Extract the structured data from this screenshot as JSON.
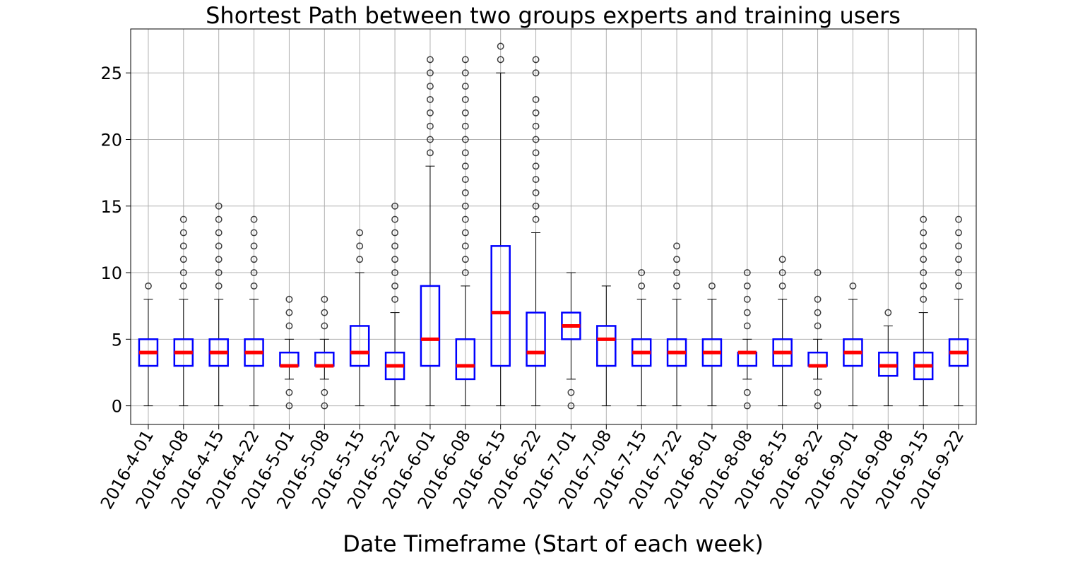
{
  "chart_data": {
    "type": "box",
    "title": "Shortest Path between two groups experts and training users",
    "xlabel": "Date Timeframe (Start of each week)",
    "ylabel": "",
    "ylim": [
      -1.4,
      28.3
    ],
    "yticks": [
      0,
      5,
      10,
      15,
      20,
      25
    ],
    "grid": true,
    "colors": {
      "box": "#0000ff",
      "median": "#ff0000",
      "whisker": "#000000",
      "grid": "#b0b0b0",
      "outlier": "#000000"
    },
    "categories": [
      "2016-4-01",
      "2016-4-08",
      "2016-4-15",
      "2016-4-22",
      "2016-5-01",
      "2016-5-08",
      "2016-5-15",
      "2016-5-22",
      "2016-6-01",
      "2016-6-08",
      "2016-6-15",
      "2016-6-22",
      "2016-7-01",
      "2016-7-08",
      "2016-7-15",
      "2016-7-22",
      "2016-8-01",
      "2016-8-08",
      "2016-8-15",
      "2016-8-22",
      "2016-9-01",
      "2016-9-08",
      "2016-9-15",
      "2016-9-22"
    ],
    "boxes": [
      {
        "category": "2016-4-01",
        "whislo": 0,
        "q1": 3,
        "med": 4,
        "q3": 5,
        "whishi": 8,
        "fliers": [
          9
        ]
      },
      {
        "category": "2016-4-08",
        "whislo": 0,
        "q1": 3,
        "med": 4,
        "q3": 5,
        "whishi": 8,
        "fliers": [
          9,
          10,
          11,
          12,
          13,
          14
        ]
      },
      {
        "category": "2016-4-15",
        "whislo": 0,
        "q1": 3,
        "med": 4,
        "q3": 5,
        "whishi": 8,
        "fliers": [
          9,
          10,
          11,
          12,
          13,
          14,
          15
        ]
      },
      {
        "category": "2016-4-22",
        "whislo": 0,
        "q1": 3,
        "med": 4,
        "q3": 5,
        "whishi": 8,
        "fliers": [
          9,
          10,
          11,
          12,
          13,
          14
        ]
      },
      {
        "category": "2016-5-01",
        "whislo": 2,
        "q1": 3,
        "med": 3,
        "q3": 4,
        "whishi": 5,
        "fliers": [
          0,
          1,
          6,
          7,
          8
        ]
      },
      {
        "category": "2016-5-08",
        "whislo": 2,
        "q1": 3,
        "med": 3,
        "q3": 4,
        "whishi": 5,
        "fliers": [
          0,
          1,
          6,
          7,
          8
        ]
      },
      {
        "category": "2016-5-15",
        "whislo": 0,
        "q1": 3,
        "med": 4,
        "q3": 6,
        "whishi": 10,
        "fliers": [
          11,
          12,
          13
        ]
      },
      {
        "category": "2016-5-22",
        "whislo": 0,
        "q1": 2,
        "med": 3,
        "q3": 4,
        "whishi": 7,
        "fliers": [
          8,
          9,
          10,
          11,
          12,
          13,
          14,
          15
        ]
      },
      {
        "category": "2016-6-01",
        "whislo": 0,
        "q1": 3,
        "med": 5,
        "q3": 9,
        "whishi": 18,
        "fliers": [
          19,
          20,
          21,
          22,
          23,
          24,
          25,
          26
        ]
      },
      {
        "category": "2016-6-08",
        "whislo": 0,
        "q1": 2,
        "med": 3,
        "q3": 5,
        "whishi": 9,
        "fliers": [
          10,
          11,
          12,
          13,
          14,
          15,
          16,
          17,
          18,
          19,
          20,
          21,
          22,
          23,
          24,
          25,
          26
        ]
      },
      {
        "category": "2016-6-15",
        "whislo": 0,
        "q1": 3,
        "med": 7,
        "q3": 12,
        "whishi": 25,
        "fliers": [
          26,
          27
        ]
      },
      {
        "category": "2016-6-22",
        "whislo": 0,
        "q1": 3,
        "med": 4,
        "q3": 7,
        "whishi": 13,
        "fliers": [
          14,
          15,
          16,
          17,
          18,
          19,
          20,
          21,
          22,
          23,
          25,
          26
        ]
      },
      {
        "category": "2016-7-01",
        "whislo": 2,
        "q1": 5,
        "med": 6,
        "q3": 7,
        "whishi": 10,
        "fliers": [
          0,
          1
        ]
      },
      {
        "category": "2016-7-08",
        "whislo": 0,
        "q1": 3,
        "med": 5,
        "q3": 6,
        "whishi": 9,
        "fliers": []
      },
      {
        "category": "2016-7-15",
        "whislo": 0,
        "q1": 3,
        "med": 4,
        "q3": 5,
        "whishi": 8,
        "fliers": [
          9,
          10
        ]
      },
      {
        "category": "2016-7-22",
        "whislo": 0,
        "q1": 3,
        "med": 4,
        "q3": 5,
        "whishi": 8,
        "fliers": [
          9,
          10,
          11,
          12
        ]
      },
      {
        "category": "2016-8-01",
        "whislo": 0,
        "q1": 3,
        "med": 4,
        "q3": 5,
        "whishi": 8,
        "fliers": [
          9
        ]
      },
      {
        "category": "2016-8-08",
        "whislo": 2,
        "q1": 3,
        "med": 4,
        "q3": 4,
        "whishi": 5,
        "fliers": [
          0,
          1,
          6,
          7,
          8,
          9,
          10
        ]
      },
      {
        "category": "2016-8-15",
        "whislo": 0,
        "q1": 3,
        "med": 4,
        "q3": 5,
        "whishi": 8,
        "fliers": [
          9,
          10,
          11
        ]
      },
      {
        "category": "2016-8-22",
        "whislo": 2,
        "q1": 3,
        "med": 3,
        "q3": 4,
        "whishi": 5,
        "fliers": [
          0,
          1,
          6,
          7,
          8,
          10
        ]
      },
      {
        "category": "2016-9-01",
        "whislo": 0,
        "q1": 3,
        "med": 4,
        "q3": 5,
        "whishi": 8,
        "fliers": [
          9
        ]
      },
      {
        "category": "2016-9-08",
        "whislo": 0,
        "q1": 2.25,
        "med": 3,
        "q3": 4,
        "whishi": 6,
        "fliers": [
          7
        ]
      },
      {
        "category": "2016-9-15",
        "whislo": 0,
        "q1": 2,
        "med": 3,
        "q3": 4,
        "whishi": 7,
        "fliers": [
          8,
          9,
          10,
          11,
          12,
          13,
          14
        ]
      },
      {
        "category": "2016-9-22",
        "whislo": 0,
        "q1": 3,
        "med": 4,
        "q3": 5,
        "whishi": 8,
        "fliers": [
          9,
          10,
          11,
          12,
          13,
          14
        ]
      }
    ]
  }
}
